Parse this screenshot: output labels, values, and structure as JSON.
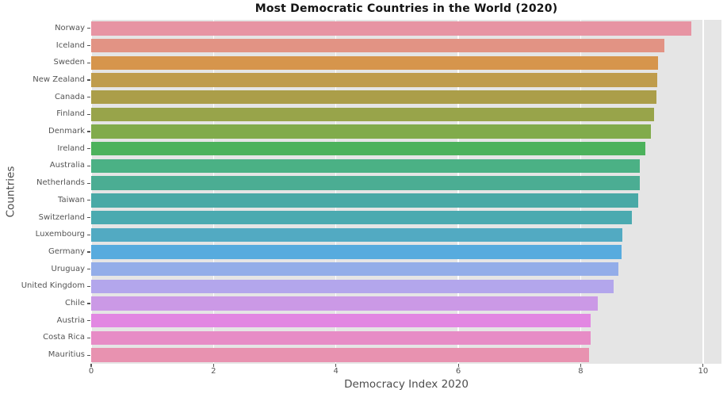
{
  "chart_data": {
    "type": "bar",
    "orientation": "horizontal",
    "title": "Most Democratic Countries in the World (2020)",
    "xlabel": "Democracy Index 2020",
    "ylabel": "Countries",
    "xlim": [
      0,
      10.3
    ],
    "x_ticks": [
      0,
      2,
      4,
      6,
      8,
      10
    ],
    "grid": true,
    "legend": false,
    "categories": [
      "Norway",
      "Iceland",
      "Sweden",
      "New Zealand",
      "Canada",
      "Finland",
      "Denmark",
      "Ireland",
      "Australia",
      "Netherlands",
      "Taiwan",
      "Switzerland",
      "Luxembourg",
      "Germany",
      "Uruguay",
      "United Kingdom",
      "Chile",
      "Austria",
      "Costa Rica",
      "Mauritius"
    ],
    "values": [
      9.81,
      9.37,
      9.26,
      9.25,
      9.24,
      9.2,
      9.15,
      9.05,
      8.96,
      8.96,
      8.94,
      8.83,
      8.68,
      8.67,
      8.61,
      8.54,
      8.28,
      8.16,
      8.16,
      8.14
    ],
    "bar_colors": [
      "#e794a3",
      "#e29384",
      "#d6954c",
      "#bf9c4c",
      "#ab9e49",
      "#98a44a",
      "#81ab4b",
      "#4cb25c",
      "#4bb185",
      "#4bad93",
      "#49a9a6",
      "#4baab0",
      "#52aac2",
      "#57abde",
      "#93ade9",
      "#b3a6ec",
      "#cb99e6",
      "#e287e2",
      "#e78cc6",
      "#e892b0"
    ]
  },
  "colors": {
    "figure_background": "#ffffff",
    "plot_background": "#e5e5e5",
    "grid_line": "#ffffff",
    "tick_label": "#555555",
    "axis_label": "#4d4d4d",
    "title": "#151515"
  }
}
